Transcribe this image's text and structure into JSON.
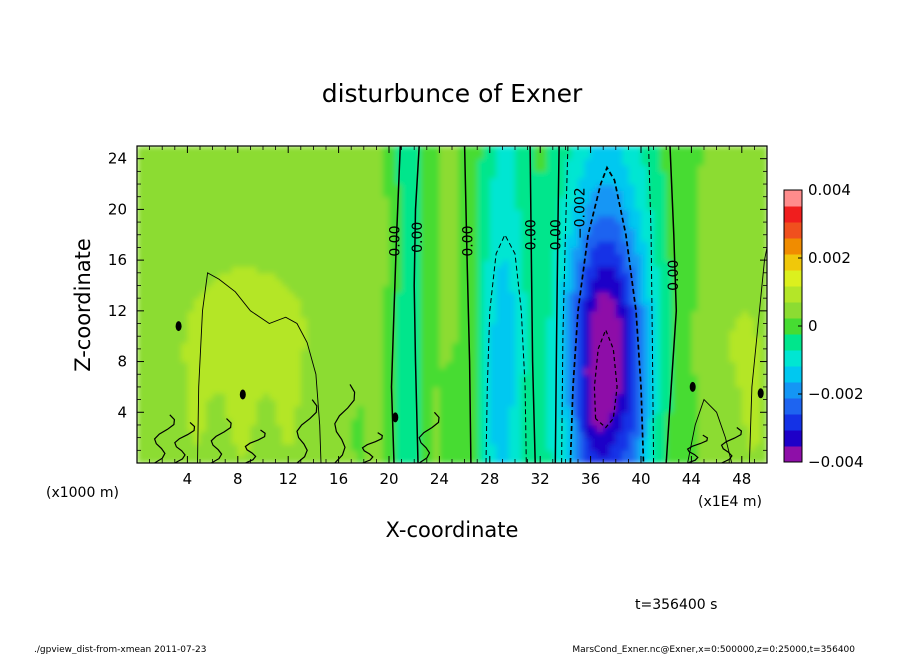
{
  "chart_data": {
    "type": "heatmap",
    "title": "disturbunce of Exner",
    "xlabel": "X-coordinate",
    "ylabel": "Z-coordinate",
    "x_unit": "(x1E4 m)",
    "y_unit": "(x1000 m)",
    "xlim": [
      0,
      50
    ],
    "ylim": [
      0,
      25
    ],
    "x_ticks": [
      4,
      8,
      12,
      16,
      20,
      24,
      28,
      32,
      36,
      40,
      44,
      48
    ],
    "y_ticks": [
      4,
      8,
      12,
      16,
      20,
      24
    ],
    "colorbar": {
      "ticks": [
        {
          "value": 0.004,
          "label": "0.004"
        },
        {
          "value": 0.002,
          "label": "0.002"
        },
        {
          "value": 0,
          "label": "0"
        },
        {
          "value": -0.002,
          "label": "−0.002"
        },
        {
          "value": -0.004,
          "label": "−0.004"
        }
      ],
      "min": -0.004,
      "max": 0.004,
      "levels": [
        {
          "lo": -0.004,
          "hi": -0.0035,
          "color": "#8e0fa8"
        },
        {
          "lo": -0.0035,
          "hi": -0.003,
          "color": "#1e00c8"
        },
        {
          "lo": -0.003,
          "hi": -0.0025,
          "color": "#1432e6"
        },
        {
          "lo": -0.0025,
          "hi": -0.002,
          "color": "#1e64f0"
        },
        {
          "lo": -0.002,
          "hi": -0.0015,
          "color": "#1496f5"
        },
        {
          "lo": -0.0015,
          "hi": -0.001,
          "color": "#00c8f0"
        },
        {
          "lo": -0.001,
          "hi": -0.0005,
          "color": "#00e6d2"
        },
        {
          "lo": -0.0005,
          "hi": 0,
          "color": "#00e68c"
        },
        {
          "lo": 0,
          "hi": 0.0005,
          "color": "#46dc32"
        },
        {
          "lo": 0.0005,
          "hi": 0.001,
          "color": "#8cdc32"
        },
        {
          "lo": 0.001,
          "hi": 0.0015,
          "color": "#b4e628"
        },
        {
          "lo": 0.0015,
          "hi": 0.002,
          "color": "#dcf01e"
        },
        {
          "lo": 0.002,
          "hi": 0.0025,
          "color": "#f0c80a"
        },
        {
          "lo": 0.0025,
          "hi": 0.003,
          "color": "#f08c00"
        },
        {
          "lo": 0.003,
          "hi": 0.0035,
          "color": "#f0501e"
        },
        {
          "lo": 0.0035,
          "hi": 0.004,
          "color": "#f01e1e"
        },
        {
          "lo": 0.004,
          "hi": 0.0045,
          "color": "#ff8c8c"
        }
      ]
    },
    "contour_labels": [
      {
        "text": "0.00",
        "x": 20.5,
        "z": 17.5
      },
      {
        "text": "0.00",
        "x": 22.3,
        "z": 17.8
      },
      {
        "text": "0.00",
        "x": 26.3,
        "z": 17.5
      },
      {
        "text": "0.00",
        "x": 31.3,
        "z": 18.0
      },
      {
        "text": "0.00",
        "x": 33.3,
        "z": 18.0
      },
      {
        "text": "−0.002",
        "x": 35.2,
        "z": 19.7
      },
      {
        "text": "0.00",
        "x": 42.6,
        "z": 14.8
      }
    ],
    "time_label": "t=356400 s"
  },
  "footer": {
    "left": "./gpview_dist-from-xmean  2011-07-23",
    "right": "MarsCond_Exner.nc@Exner,x=0:500000,z=0:25000,t=356400"
  }
}
